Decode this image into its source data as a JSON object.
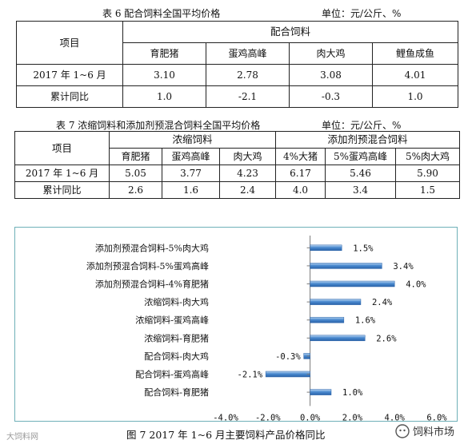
{
  "table6": {
    "caption": "表 6    配合饲料全国平均价格",
    "unit": "单位：元/公斤、%",
    "item_header": "项目",
    "group_header": "配合饲料",
    "columns": [
      "育肥猪",
      "蛋鸡高峰",
      "肉大鸡",
      "鲤鱼成鱼"
    ],
    "rows": [
      {
        "label": "2017 年 1~6 月",
        "values": [
          "3.10",
          "2.78",
          "3.08",
          "4.01"
        ]
      },
      {
        "label": "累计同比",
        "values": [
          "1.0",
          "-2.1",
          "-0.3",
          "1.0"
        ]
      }
    ]
  },
  "table7": {
    "caption": "表 7   浓缩饲料和添加剂预混合饲料全国平均价格",
    "unit": "单位：元/公斤、%",
    "item_header": "项目",
    "group_headers": [
      "浓缩饲料",
      "添加剂预混合饲料"
    ],
    "columns": [
      "育肥猪",
      "蛋鸡高峰",
      "肉大鸡",
      "4%大猪",
      "5%蛋鸡高峰",
      "5%肉大鸡"
    ],
    "rows": [
      {
        "label": "2017 年 1~6 月",
        "values": [
          "5.05",
          "3.77",
          "4.23",
          "6.17",
          "5.46",
          "5.90"
        ]
      },
      {
        "label": "累计同比",
        "values": [
          "2.6",
          "1.6",
          "2.4",
          "4.0",
          "3.4",
          "1.5"
        ]
      }
    ]
  },
  "figure_caption": "图 7   2017 年 1~6 月主要饲料产品价格同比",
  "watermark_left": "大饲料网",
  "watermark_right": "饲料市场",
  "colors": {
    "bar": "#4a8ad0",
    "bar_light": "#b8d4f0",
    "frame": "#6fb0b8"
  },
  "chart_data": {
    "type": "bar",
    "orientation": "horizontal",
    "categories": [
      "添加剂预混合饲料-5%肉大鸡",
      "添加剂预混合饲料-5%蛋鸡高峰",
      "添加剂预混合饲料-4%育肥猪",
      "浓缩饲料-肉大鸡",
      "浓缩饲料-蛋鸡高峰",
      "浓缩饲料-育肥猪",
      "配合饲料-肉大鸡",
      "配合饲料-蛋鸡高峰",
      "配合饲料-育肥猪"
    ],
    "values": [
      1.5,
      3.4,
      4.0,
      2.4,
      1.6,
      2.6,
      -0.3,
      -2.1,
      1.0
    ],
    "value_labels": [
      "1.5%",
      "3.4%",
      "4.0%",
      "2.4%",
      "1.6%",
      "2.6%",
      "-0.3%",
      "-2.1%",
      "1.0%"
    ],
    "xlim": [
      -4.0,
      6.0
    ],
    "xticks": [
      -4.0,
      -2.0,
      0.0,
      2.0,
      4.0,
      6.0
    ],
    "xtick_labels": [
      "-4.0%",
      "-2.0%",
      "0.0%",
      "2.0%",
      "4.0%",
      "6.0%"
    ],
    "grid": false,
    "legend": "none"
  }
}
